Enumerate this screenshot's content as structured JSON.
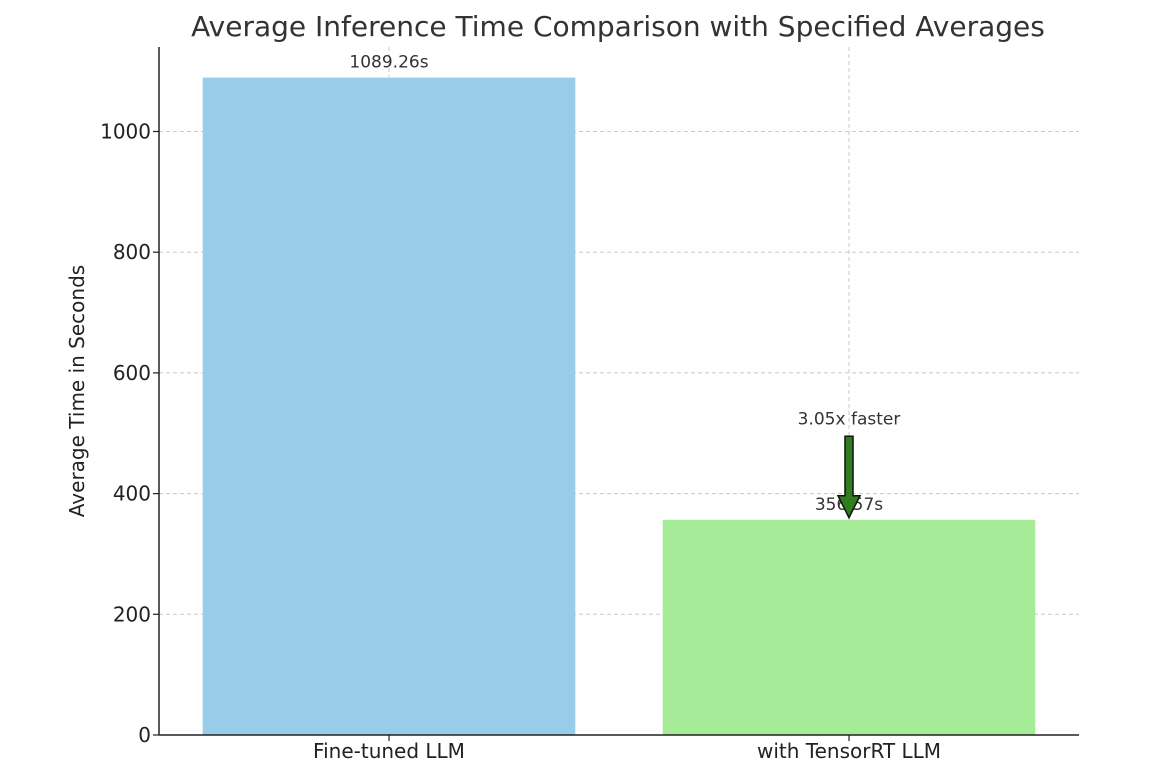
{
  "chart_data": {
    "type": "bar",
    "title": "Average Inference Time Comparison with Specified Averages",
    "xlabel": "",
    "ylabel": "Average Time in Seconds",
    "categories": [
      "Fine-tuned LLM",
      "with TensorRT LLM"
    ],
    "values": [
      1089.26,
      356.57
    ],
    "data_labels": [
      "1089.26s",
      "356.57s"
    ],
    "colors": [
      "#98cce8",
      "#a6eb98"
    ],
    "ylim": [
      0,
      1140
    ],
    "yticks": [
      0,
      200,
      400,
      600,
      800,
      1000
    ],
    "ytick_labels": [
      "0",
      "200",
      "400",
      "600",
      "800",
      "1000"
    ],
    "grid": true,
    "annotation": {
      "text": "3.05x faster",
      "category": "with TensorRT LLM",
      "arrow_from_value": 495,
      "arrow_to_value": 360,
      "arrow_color": "#2e7d1f"
    }
  }
}
